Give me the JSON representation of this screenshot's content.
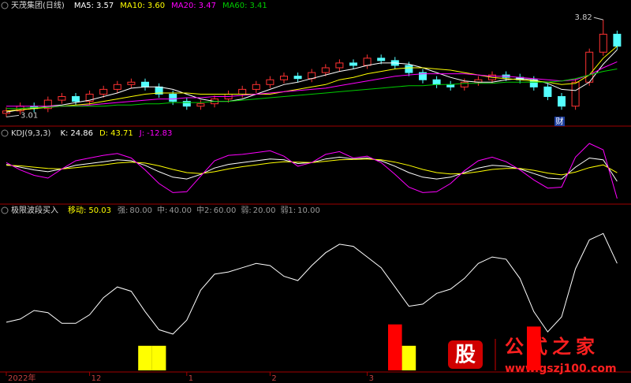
{
  "chart_data": [
    {
      "type": "candlestick",
      "title": "天茂集团(日线)",
      "opens": [
        3.04,
        3.06,
        3.1,
        3.08,
        3.15,
        3.18,
        3.14,
        3.2,
        3.24,
        3.28,
        3.3,
        3.26,
        3.2,
        3.14,
        3.1,
        3.12,
        3.16,
        3.2,
        3.24,
        3.28,
        3.32,
        3.35,
        3.33,
        3.38,
        3.42,
        3.46,
        3.44,
        3.5,
        3.48,
        3.44,
        3.38,
        3.32,
        3.28,
        3.26,
        3.3,
        3.32,
        3.36,
        3.34,
        3.32,
        3.26,
        3.18,
        3.1,
        3.3,
        3.55,
        3.7
      ],
      "highs": [
        3.09,
        3.13,
        3.13,
        3.18,
        3.21,
        3.21,
        3.23,
        3.27,
        3.31,
        3.33,
        3.33,
        3.29,
        3.23,
        3.17,
        3.15,
        3.19,
        3.23,
        3.27,
        3.31,
        3.35,
        3.38,
        3.38,
        3.41,
        3.45,
        3.49,
        3.49,
        3.53,
        3.53,
        3.51,
        3.47,
        3.41,
        3.35,
        3.31,
        3.33,
        3.35,
        3.39,
        3.39,
        3.37,
        3.35,
        3.29,
        3.21,
        3.33,
        3.58,
        3.82,
        3.73
      ],
      "lows": [
        3.01,
        3.03,
        3.05,
        3.05,
        3.12,
        3.11,
        3.11,
        3.17,
        3.21,
        3.25,
        3.23,
        3.17,
        3.11,
        3.07,
        3.07,
        3.09,
        3.13,
        3.17,
        3.21,
        3.25,
        3.29,
        3.3,
        3.3,
        3.35,
        3.39,
        3.41,
        3.41,
        3.45,
        3.41,
        3.35,
        3.29,
        3.25,
        3.23,
        3.23,
        3.27,
        3.29,
        3.31,
        3.29,
        3.23,
        3.15,
        3.07,
        3.07,
        3.27,
        3.52,
        3.57
      ],
      "closes": [
        3.06,
        3.1,
        3.08,
        3.15,
        3.18,
        3.14,
        3.2,
        3.24,
        3.28,
        3.3,
        3.26,
        3.2,
        3.14,
        3.1,
        3.12,
        3.16,
        3.2,
        3.24,
        3.28,
        3.32,
        3.35,
        3.33,
        3.38,
        3.42,
        3.46,
        3.44,
        3.5,
        3.48,
        3.44,
        3.38,
        3.32,
        3.28,
        3.26,
        3.3,
        3.32,
        3.36,
        3.34,
        3.32,
        3.26,
        3.18,
        3.1,
        3.3,
        3.55,
        3.7,
        3.6
      ],
      "up_color": "#ff3232",
      "down_color": "#54ffff",
      "series": [
        {
          "name": "MA5:",
          "color": "#ffffff",
          "legend_label": "3.57",
          "values": [
            3.05,
            3.07,
            3.08,
            3.1,
            3.11,
            3.13,
            3.15,
            3.18,
            3.21,
            3.25,
            3.26,
            3.26,
            3.24,
            3.2,
            3.16,
            3.14,
            3.14,
            3.16,
            3.2,
            3.24,
            3.28,
            3.3,
            3.33,
            3.36,
            3.39,
            3.41,
            3.44,
            3.46,
            3.46,
            3.45,
            3.42,
            3.38,
            3.34,
            3.31,
            3.3,
            3.3,
            3.32,
            3.33,
            3.32,
            3.29,
            3.24,
            3.23,
            3.3,
            3.45,
            3.57
          ]
        },
        {
          "name": "MA10:",
          "color": "#ffff00",
          "legend_label": "3.60",
          "values": [
            3.06,
            3.07,
            3.08,
            3.09,
            3.1,
            3.11,
            3.12,
            3.14,
            3.16,
            3.18,
            3.2,
            3.21,
            3.21,
            3.21,
            3.2,
            3.2,
            3.2,
            3.2,
            3.2,
            3.2,
            3.22,
            3.24,
            3.26,
            3.28,
            3.32,
            3.34,
            3.37,
            3.39,
            3.41,
            3.42,
            3.42,
            3.41,
            3.4,
            3.38,
            3.36,
            3.34,
            3.33,
            3.32,
            3.31,
            3.3,
            3.28,
            3.29,
            3.36,
            3.5,
            3.6
          ]
        },
        {
          "name": "MA20:",
          "color": "#ff00ff",
          "legend_label": "3.47",
          "values": [
            3.1,
            3.1,
            3.1,
            3.1,
            3.1,
            3.1,
            3.11,
            3.12,
            3.13,
            3.14,
            3.15,
            3.16,
            3.16,
            3.17,
            3.17,
            3.18,
            3.18,
            3.19,
            3.2,
            3.21,
            3.22,
            3.23,
            3.24,
            3.25,
            3.27,
            3.29,
            3.31,
            3.33,
            3.35,
            3.36,
            3.37,
            3.37,
            3.37,
            3.37,
            3.36,
            3.35,
            3.35,
            3.34,
            3.33,
            3.32,
            3.31,
            3.32,
            3.36,
            3.42,
            3.47
          ]
        },
        {
          "name": "MA60:",
          "color": "#00cc00",
          "legend_label": "3.41",
          "values": [
            3.08,
            3.08,
            3.09,
            3.09,
            3.1,
            3.1,
            3.1,
            3.1,
            3.11,
            3.11,
            3.12,
            3.12,
            3.13,
            3.13,
            3.13,
            3.14,
            3.14,
            3.15,
            3.16,
            3.17,
            3.18,
            3.19,
            3.2,
            3.21,
            3.22,
            3.23,
            3.24,
            3.25,
            3.26,
            3.27,
            3.27,
            3.28,
            3.28,
            3.29,
            3.29,
            3.29,
            3.3,
            3.3,
            3.3,
            3.3,
            3.31,
            3.33,
            3.36,
            3.39,
            3.41
          ]
        }
      ],
      "annotations": [
        {
          "text": "财"
        }
      ],
      "ylim": [
        2.96,
        3.88
      ]
    },
    {
      "type": "line",
      "title": "KDJ(9,3,3)",
      "series": [
        {
          "name": "K:",
          "color": "#ffffff",
          "legend_label": "24.86",
          "values": [
            62,
            56,
            50,
            46,
            52,
            60,
            64,
            68,
            72,
            70,
            60,
            46,
            34,
            30,
            40,
            54,
            62,
            66,
            70,
            74,
            72,
            64,
            66,
            74,
            78,
            74,
            76,
            70,
            58,
            44,
            34,
            30,
            34,
            44,
            54,
            60,
            58,
            52,
            42,
            32,
            30,
            56,
            76,
            72,
            24.86
          ]
        },
        {
          "name": "D:",
          "color": "#ffff00",
          "legend_label": "43.71",
          "values": [
            60,
            59,
            56,
            53,
            52,
            55,
            58,
            61,
            65,
            67,
            65,
            59,
            51,
            44,
            42,
            46,
            52,
            57,
            61,
            65,
            68,
            67,
            66,
            69,
            72,
            73,
            74,
            72,
            67,
            60,
            51,
            44,
            41,
            42,
            46,
            51,
            53,
            53,
            49,
            43,
            39,
            45,
            55,
            61,
            43.71
          ]
        },
        {
          "name": "J:",
          "color": "#ff00ff",
          "legend_label": "-12.83",
          "values": [
            66,
            50,
            38,
            32,
            52,
            70,
            76,
            82,
            86,
            76,
            50,
            20,
            0,
            2,
            36,
            70,
            82,
            84,
            88,
            92,
            80,
            58,
            66,
            84,
            90,
            76,
            80,
            66,
            40,
            12,
            0,
            2,
            20,
            48,
            70,
            78,
            68,
            50,
            28,
            10,
            12,
            78,
            108,
            94,
            -12.83
          ]
        }
      ],
      "ylim": [
        -20,
        115
      ]
    },
    {
      "type": "line",
      "title": "极限波段买入",
      "categories": [
        "2022年",
        null,
        null,
        null,
        null,
        null,
        "12",
        null,
        null,
        null,
        null,
        null,
        null,
        "1",
        null,
        null,
        null,
        null,
        null,
        "2",
        null,
        null,
        null,
        null,
        null,
        null,
        "3",
        null,
        null,
        null,
        null,
        null,
        null,
        null,
        null,
        null,
        null,
        null,
        null,
        null,
        null,
        null,
        null,
        null,
        null
      ],
      "series": [
        {
          "name": "移动:",
          "color": "#ffffff",
          "legend_color": "#ffff00",
          "legend_label": "50.03",
          "values": [
            -5,
            -2,
            6,
            4,
            -6,
            -6,
            2,
            18,
            28,
            24,
            5,
            -12,
            -16,
            -3,
            25,
            40,
            42,
            46,
            50,
            48,
            38,
            34,
            48,
            60,
            68,
            66,
            56,
            46,
            28,
            10,
            12,
            22,
            26,
            36,
            50,
            56,
            54,
            36,
            5,
            -14,
            0,
            45,
            72,
            78,
            50.03
          ]
        }
      ],
      "params": [
        {
          "name": "强:",
          "label": "80.00"
        },
        {
          "name": "中:",
          "label": "40.00"
        },
        {
          "name": "中2:",
          "label": "60.00"
        },
        {
          "name": "弱:",
          "label": "20.00"
        },
        {
          "name": "弱1:",
          "label": "10.00"
        }
      ],
      "bars": [
        {
          "color": "#ffff00",
          "values": [
            null,
            null,
            null,
            null,
            null,
            null,
            null,
            null,
            null,
            null,
            -27,
            -27,
            null,
            null,
            null,
            null,
            null,
            null,
            null,
            null,
            null,
            null,
            null,
            null,
            null,
            null,
            null,
            null,
            -27,
            -27,
            null,
            null,
            null,
            null,
            null,
            null,
            null,
            null,
            null,
            null,
            null,
            null,
            null,
            null,
            null
          ]
        },
        {
          "color": "#ff0000",
          "values": [
            null,
            null,
            null,
            null,
            null,
            null,
            null,
            null,
            null,
            null,
            null,
            null,
            null,
            null,
            null,
            null,
            null,
            null,
            null,
            null,
            null,
            null,
            null,
            null,
            null,
            null,
            null,
            null,
            -7,
            null,
            null,
            null,
            null,
            null,
            null,
            null,
            null,
            null,
            -9,
            null,
            null,
            null,
            null,
            null,
            null
          ]
        }
      ],
      "ylim": [
        -50,
        90
      ]
    }
  ],
  "watermark": {
    "icon": "股",
    "name": "公式之家",
    "url": "www.gszj100.com"
  }
}
